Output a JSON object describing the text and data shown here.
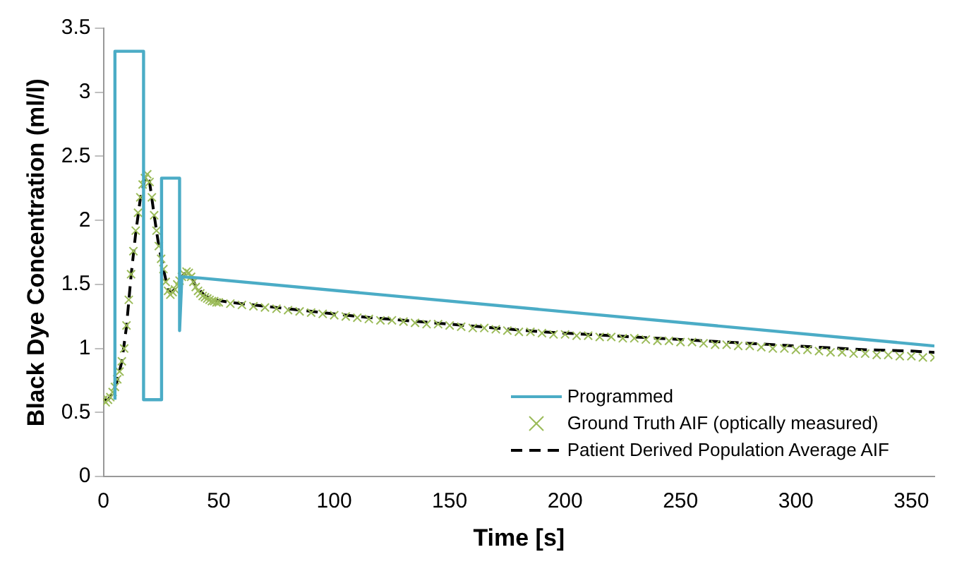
{
  "chart_data": {
    "type": "line",
    "xlabel": "Time [s]",
    "ylabel": "Black Dye Concentration (ml/l)",
    "xlim": [
      0,
      360
    ],
    "xticks": [
      0,
      50,
      100,
      150,
      200,
      250,
      300,
      350
    ],
    "ylim": [
      0,
      3.5
    ],
    "yticks": [
      0,
      0.5,
      1,
      1.5,
      2,
      2.5,
      3,
      3.5
    ],
    "grid": false,
    "legend": "bottom right",
    "series": [
      {
        "name": "Programmed",
        "color": "#4bacc6",
        "line_style": "solid",
        "marker": "none",
        "x": [
          5,
          5,
          17.4,
          17.4,
          25.2,
          25.2,
          33,
          33,
          34,
          42,
          360
        ],
        "values": [
          0.6,
          3.32,
          3.32,
          0.6,
          0.6,
          2.33,
          2.33,
          1.14,
          1.56,
          1.55,
          1.02
        ]
      },
      {
        "name": "Ground Truth AIF (optically measured)",
        "type": "scatter",
        "color": "#9bbb59",
        "marker": "cross",
        "x": [
          0,
          1,
          2,
          3,
          4,
          5,
          6,
          7,
          8,
          9,
          10,
          11,
          12,
          13,
          14,
          15,
          16,
          17,
          18,
          19,
          20,
          21,
          22,
          23,
          24,
          25,
          26,
          27,
          28,
          29,
          30,
          31,
          32,
          33,
          34,
          35,
          36,
          37,
          38,
          39,
          40,
          41,
          42,
          43,
          44,
          45,
          46,
          47,
          48,
          49,
          50,
          55,
          60,
          65,
          70,
          75,
          80,
          85,
          90,
          95,
          100,
          105,
          110,
          115,
          120,
          125,
          130,
          135,
          140,
          145,
          150,
          155,
          160,
          165,
          170,
          175,
          180,
          185,
          190,
          195,
          200,
          205,
          210,
          215,
          220,
          225,
          230,
          235,
          240,
          245,
          250,
          255,
          260,
          265,
          270,
          275,
          280,
          285,
          290,
          295,
          300,
          305,
          310,
          315,
          320,
          325,
          330,
          335,
          340,
          345,
          350,
          355,
          360
        ],
        "values": [
          0.6,
          0.58,
          0.6,
          0.62,
          0.66,
          0.7,
          0.76,
          0.82,
          0.9,
          1.0,
          1.18,
          1.38,
          1.58,
          1.76,
          1.92,
          2.06,
          2.18,
          2.28,
          2.33,
          2.36,
          2.3,
          2.18,
          2.04,
          1.92,
          1.8,
          1.7,
          1.62,
          1.52,
          1.45,
          1.42,
          1.44,
          1.46,
          1.5,
          1.53,
          1.56,
          1.58,
          1.6,
          1.59,
          1.56,
          1.52,
          1.48,
          1.45,
          1.43,
          1.41,
          1.4,
          1.39,
          1.38,
          1.37,
          1.37,
          1.36,
          1.36,
          1.35,
          1.34,
          1.33,
          1.32,
          1.31,
          1.3,
          1.29,
          1.28,
          1.27,
          1.26,
          1.25,
          1.24,
          1.23,
          1.22,
          1.22,
          1.21,
          1.2,
          1.19,
          1.19,
          1.18,
          1.17,
          1.16,
          1.16,
          1.15,
          1.14,
          1.13,
          1.13,
          1.12,
          1.11,
          1.11,
          1.1,
          1.1,
          1.09,
          1.09,
          1.08,
          1.08,
          1.07,
          1.06,
          1.06,
          1.05,
          1.05,
          1.04,
          1.03,
          1.03,
          1.02,
          1.02,
          1.01,
          1.0,
          1.0,
          0.99,
          0.99,
          0.98,
          0.97,
          0.97,
          0.96,
          0.96,
          0.95,
          0.95,
          0.94,
          0.94,
          0.93,
          0.93
        ]
      },
      {
        "name": "Patient Derived Population Average AIF",
        "color": "#000000",
        "line_style": "dashed",
        "marker": "none",
        "x": [
          0,
          2,
          4,
          6,
          8,
          10,
          12,
          14,
          16,
          18,
          19,
          20,
          22,
          24,
          26,
          28,
          30,
          32,
          34,
          36,
          38,
          40,
          44,
          48,
          55,
          70,
          90,
          110,
          130,
          150,
          170,
          190,
          210,
          230,
          250,
          270,
          290,
          310,
          330,
          350,
          360
        ],
        "values": [
          0.6,
          0.6,
          0.65,
          0.75,
          0.9,
          1.17,
          1.57,
          1.9,
          2.17,
          2.32,
          2.35,
          2.3,
          2.04,
          1.8,
          1.62,
          1.46,
          1.44,
          1.5,
          1.56,
          1.6,
          1.56,
          1.49,
          1.41,
          1.38,
          1.36,
          1.33,
          1.29,
          1.25,
          1.22,
          1.19,
          1.16,
          1.13,
          1.11,
          1.09,
          1.07,
          1.05,
          1.03,
          1.01,
          0.99,
          0.98,
          0.97
        ]
      }
    ]
  }
}
